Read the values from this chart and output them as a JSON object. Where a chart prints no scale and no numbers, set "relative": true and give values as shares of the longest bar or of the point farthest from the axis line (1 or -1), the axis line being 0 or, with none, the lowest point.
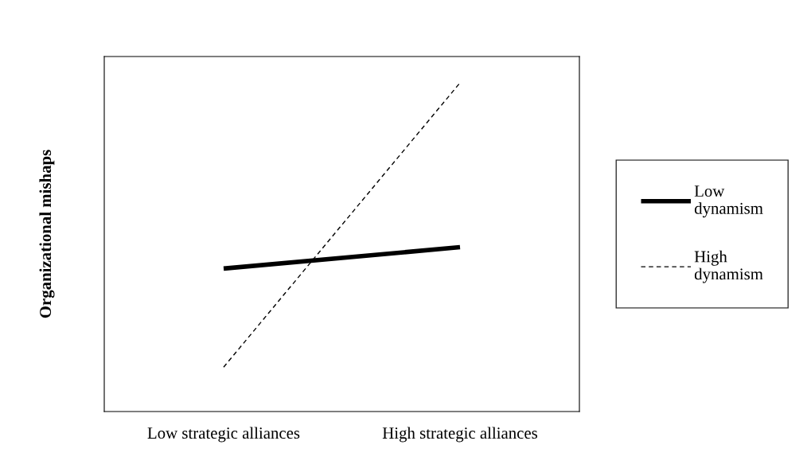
{
  "chart_data": {
    "type": "line",
    "ylabel": "Organizational mishaps",
    "relative": true,
    "categories": [
      "Low strategic alliances",
      "High strategic alliances"
    ],
    "series": [
      {
        "name": "Low dynamism",
        "color": "#000000",
        "values": [
          0.435,
          0.5
        ],
        "line_style": "solid"
      },
      {
        "name": "High dynamism",
        "color": "#000000",
        "values": [
          0.135,
          1.0
        ],
        "line_style": "dashed"
      }
    ],
    "legend": "right",
    "grid": false
  }
}
